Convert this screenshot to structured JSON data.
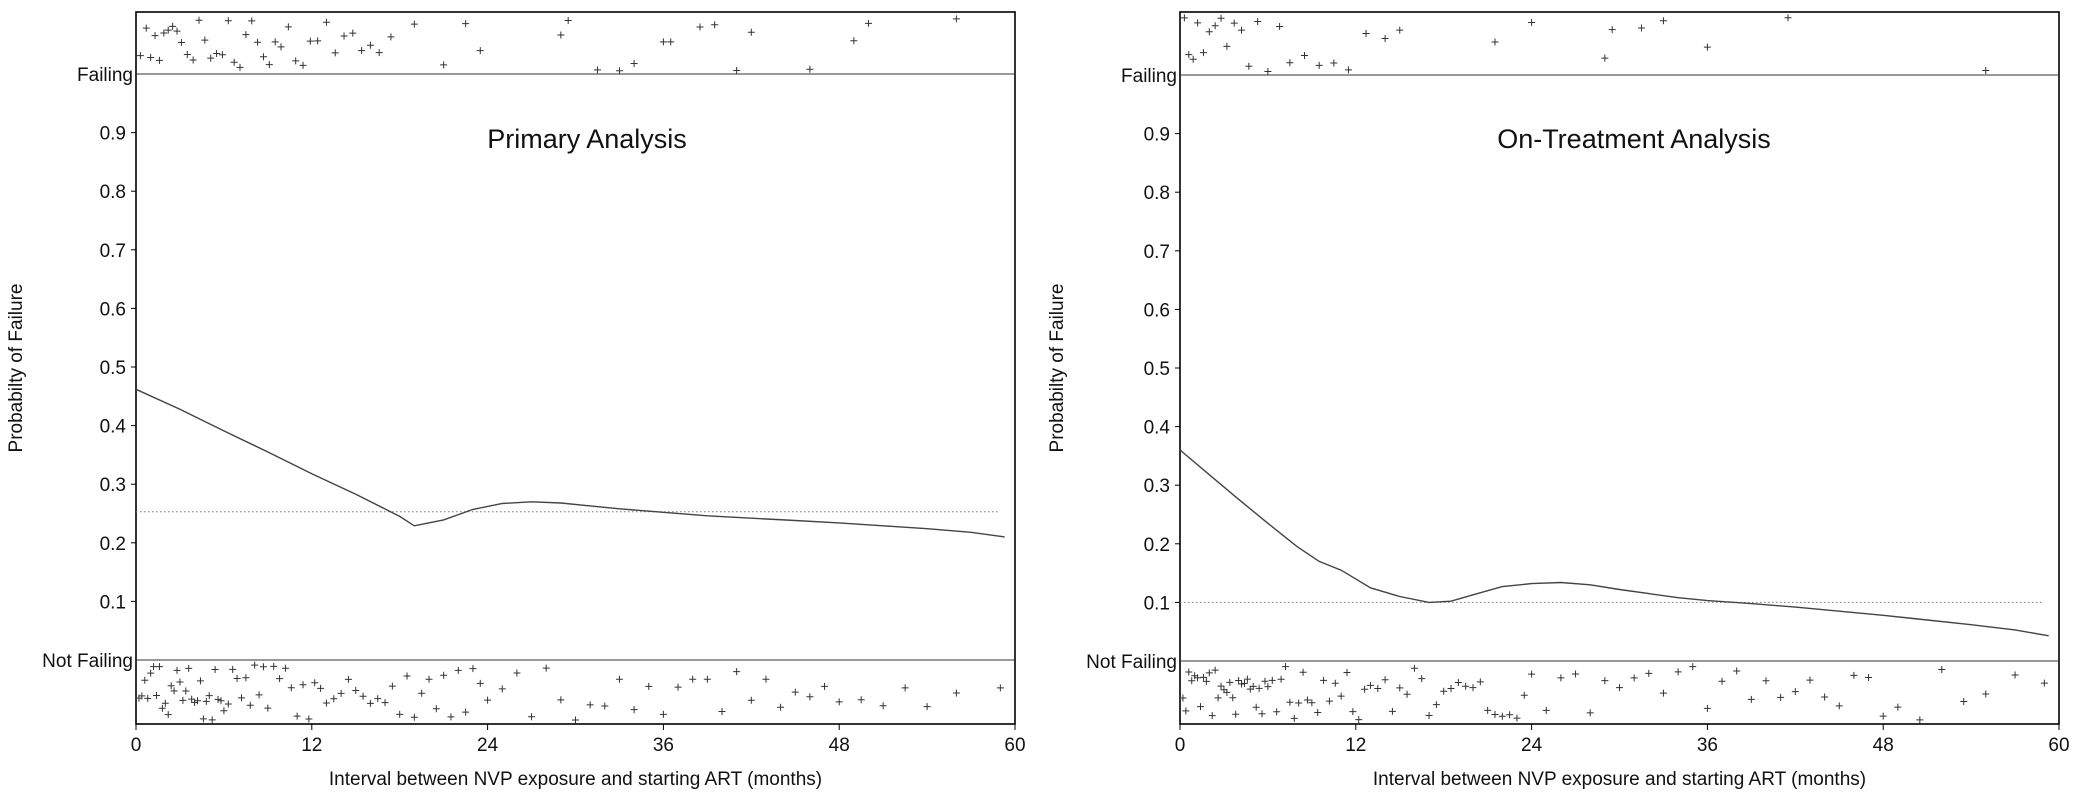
{
  "chart_data": [
    {
      "type": "line",
      "title": "Primary Analysis",
      "xlabel": "Interval between NVP exposure and starting ART (months)",
      "ylabel": "Probabilty of Failure",
      "xlim": [
        0,
        60
      ],
      "x_ticks": [
        "0",
        "12",
        "24",
        "36",
        "48",
        "60"
      ],
      "y_ticks": [
        "0.1",
        "0.2",
        "0.3",
        "0.4",
        "0.5",
        "0.6",
        "0.7",
        "0.8",
        "0.9"
      ],
      "outcome_labels": {
        "top": "Failing",
        "bottom": "Not Failing"
      },
      "reference_line": 0.253,
      "grid": false,
      "series": [
        {
          "x": [
            0,
            3,
            6,
            9,
            12,
            15,
            18,
            19,
            21,
            23,
            25,
            27,
            29,
            31,
            33,
            36,
            39,
            42,
            45,
            48,
            51,
            54,
            57,
            59.3
          ],
          "values": [
            0.462,
            0.428,
            0.391,
            0.355,
            0.318,
            0.283,
            0.245,
            0.229,
            0.239,
            0.257,
            0.267,
            0.27,
            0.268,
            0.263,
            0.258,
            0.252,
            0.246,
            0.242,
            0.238,
            0.234,
            0.229,
            0.224,
            0.218,
            0.21
          ]
        }
      ],
      "rug_data": {
        "failing_x": [
          0.3,
          0.7,
          1.0,
          1.3,
          1.6,
          1.9,
          2.2,
          2.5,
          2.8,
          3.1,
          3.5,
          3.9,
          4.3,
          4.7,
          5.1,
          5.5,
          5.9,
          6.3,
          6.7,
          7.1,
          7.5,
          7.9,
          8.3,
          8.7,
          9.1,
          9.5,
          9.9,
          10.4,
          10.9,
          11.4,
          11.9,
          12.4,
          13.0,
          13.6,
          14.2,
          14.8,
          15.4,
          16.0,
          16.6,
          17.4,
          19.0,
          21.0,
          22.5,
          23.5,
          29.0,
          29.5,
          31.5,
          33.0,
          34.0,
          36.0,
          36.5,
          38.5,
          39.5,
          41.0,
          42.0,
          46.0,
          49.0,
          50.0,
          56.0
        ],
        "not_failing_x": [
          0.2,
          0.4,
          0.6,
          0.8,
          1.0,
          1.2,
          1.4,
          1.6,
          1.8,
          2.0,
          2.2,
          2.4,
          2.6,
          2.8,
          3.0,
          3.2,
          3.4,
          3.6,
          3.8,
          4.0,
          4.2,
          4.4,
          4.6,
          4.8,
          5.0,
          5.2,
          5.4,
          5.6,
          5.8,
          6.0,
          6.3,
          6.6,
          6.9,
          7.2,
          7.5,
          7.8,
          8.1,
          8.4,
          8.7,
          9.0,
          9.4,
          9.8,
          10.2,
          10.6,
          11.0,
          11.4,
          11.8,
          12.2,
          12.6,
          13.0,
          13.5,
          14.0,
          14.5,
          15.0,
          15.5,
          16.0,
          16.5,
          17.0,
          17.5,
          18.0,
          18.5,
          19.0,
          19.5,
          20.0,
          20.5,
          21.0,
          21.5,
          22.0,
          22.5,
          23.0,
          23.5,
          24.0,
          25.0,
          26.0,
          27.0,
          28.0,
          29.0,
          30.0,
          31.0,
          32.0,
          33.0,
          34.0,
          35.0,
          36.0,
          37.0,
          38.0,
          39.0,
          40.0,
          41.0,
          42.0,
          43.0,
          44.0,
          45.0,
          46.0,
          47.0,
          48.0,
          49.5,
          51.0,
          52.5,
          54.0,
          56.0,
          59.0
        ]
      }
    },
    {
      "type": "line",
      "title": "On-Treatment Analysis",
      "xlabel": "Interval between NVP exposure and starting ART (months)",
      "ylabel": "Probabilty of Failure",
      "xlim": [
        0,
        60
      ],
      "x_ticks": [
        "0",
        "12",
        "24",
        "36",
        "48",
        "60"
      ],
      "y_ticks": [
        "0.1",
        "0.2",
        "0.3",
        "0.4",
        "0.5",
        "0.6",
        "0.7",
        "0.8",
        "0.9"
      ],
      "outcome_labels": {
        "top": "Failing",
        "bottom": "Not Failing"
      },
      "reference_line": 0.1,
      "grid": false,
      "series": [
        {
          "x": [
            0,
            2,
            4,
            6,
            8,
            9.5,
            11,
            13,
            15,
            17,
            18.5,
            20,
            22,
            24,
            26,
            28,
            30,
            32,
            34,
            36,
            39,
            42,
            45,
            48,
            51,
            54,
            57,
            59.3
          ],
          "values": [
            0.36,
            0.318,
            0.276,
            0.235,
            0.195,
            0.17,
            0.155,
            0.125,
            0.11,
            0.1,
            0.102,
            0.113,
            0.127,
            0.132,
            0.134,
            0.13,
            0.122,
            0.115,
            0.108,
            0.103,
            0.098,
            0.092,
            0.085,
            0.078,
            0.07,
            0.062,
            0.053,
            0.043
          ]
        }
      ],
      "rug_data": {
        "failing_x": [
          0.3,
          0.6,
          0.9,
          1.2,
          1.6,
          2.0,
          2.4,
          2.8,
          3.2,
          3.7,
          4.2,
          4.7,
          5.3,
          6.0,
          6.8,
          7.5,
          8.5,
          9.5,
          10.5,
          11.5,
          12.7,
          14.0,
          15.0,
          21.5,
          24.0,
          29.0,
          29.5,
          31.5,
          33.0,
          36.0,
          41.5,
          55.0
        ],
        "not_failing_x": [
          0.2,
          0.4,
          0.6,
          0.8,
          1.0,
          1.2,
          1.4,
          1.6,
          1.8,
          2.0,
          2.2,
          2.4,
          2.6,
          2.8,
          3.0,
          3.2,
          3.4,
          3.6,
          3.8,
          4.0,
          4.2,
          4.4,
          4.6,
          4.8,
          5.0,
          5.2,
          5.4,
          5.6,
          5.8,
          6.0,
          6.3,
          6.6,
          6.9,
          7.2,
          7.5,
          7.8,
          8.1,
          8.4,
          8.7,
          9.0,
          9.4,
          9.8,
          10.2,
          10.6,
          11.0,
          11.4,
          11.8,
          12.2,
          12.6,
          13.0,
          13.5,
          14.0,
          14.5,
          15.0,
          15.5,
          16.0,
          16.5,
          17.0,
          17.5,
          18.0,
          18.5,
          19.0,
          19.5,
          20.0,
          20.5,
          21.0,
          21.5,
          22.0,
          22.5,
          23.0,
          23.5,
          24.0,
          25.0,
          26.0,
          27.0,
          28.0,
          29.0,
          30.0,
          31.0,
          32.0,
          33.0,
          34.0,
          35.0,
          36.0,
          37.0,
          38.0,
          39.0,
          40.0,
          41.0,
          42.0,
          43.0,
          44.0,
          45.0,
          46.0,
          47.0,
          48.0,
          49.0,
          50.5,
          52.0,
          53.5,
          55.0,
          57.0,
          59.0
        ]
      }
    }
  ]
}
